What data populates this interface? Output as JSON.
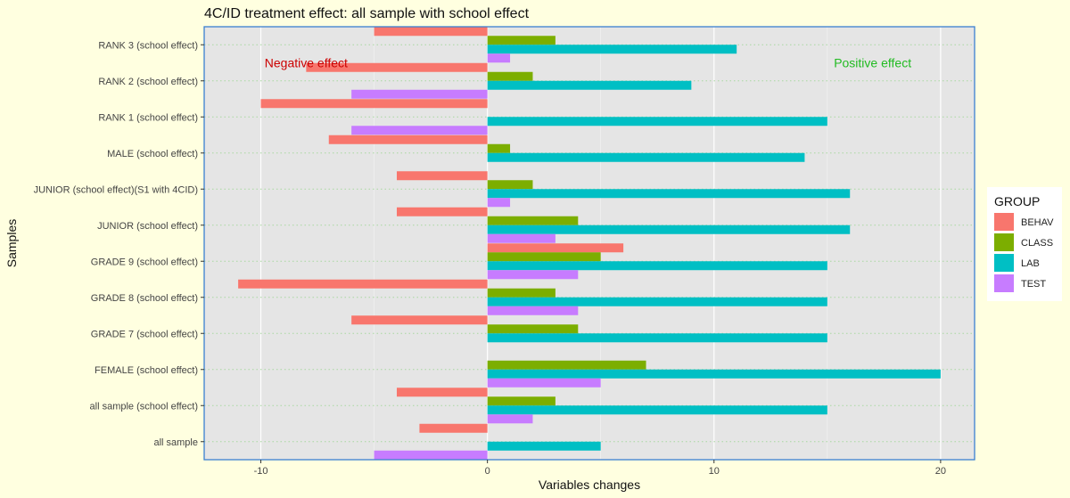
{
  "chart_data": {
    "type": "bar",
    "orientation": "horizontal",
    "title": "4C/ID treatment effect: all sample with school effect",
    "xlabel": "Variables changes",
    "ylabel": "Samples",
    "xlim": [
      -12.5,
      21.5
    ],
    "x_ticks": [
      -10,
      0,
      10,
      20
    ],
    "x_tick_labels": [
      "-10",
      "0",
      "10",
      "20"
    ],
    "grid": true,
    "legend_position": "right",
    "legend_title": "GROUP",
    "categories": [
      "all sample",
      "all sample (school effect)",
      "FEMALE (school effect)",
      "GRADE 7 (school effect)",
      "GRADE 8 (school effect)",
      "GRADE 9 (school effect)",
      "JUNIOR (school effect)",
      "JUNIOR (school effect)(S1 with 4CID)",
      "MALE (school effect)",
      "RANK 1 (school effect)",
      "RANK 2 (school effect)",
      "RANK 3 (school effect)"
    ],
    "series": [
      {
        "name": "BEHAV",
        "color": "#f8766d",
        "values": [
          -3,
          -4,
          null,
          -6,
          -11,
          6,
          -4,
          -4,
          -7,
          -10,
          -8,
          -5
        ]
      },
      {
        "name": "CLASS",
        "color": "#7cae00",
        "values": [
          null,
          3,
          7,
          4,
          3,
          5,
          4,
          2,
          1,
          null,
          2,
          3
        ]
      },
      {
        "name": "LAB",
        "color": "#00bfc4",
        "values": [
          5,
          15,
          20,
          15,
          15,
          15,
          16,
          16,
          14,
          15,
          9,
          11
        ]
      },
      {
        "name": "TEST",
        "color": "#c77cff",
        "values": [
          -5,
          2,
          5,
          null,
          4,
          4,
          3,
          1,
          null,
          -6,
          -6,
          1
        ]
      }
    ],
    "annotations": [
      {
        "text": "Negative effect",
        "x": -8,
        "category": "RANK 3 (school effect)",
        "color": "#cc0000"
      },
      {
        "text": "Positive effect",
        "x": 17,
        "category": "RANK 3 (school effect)",
        "color": "#22bb22"
      }
    ]
  }
}
